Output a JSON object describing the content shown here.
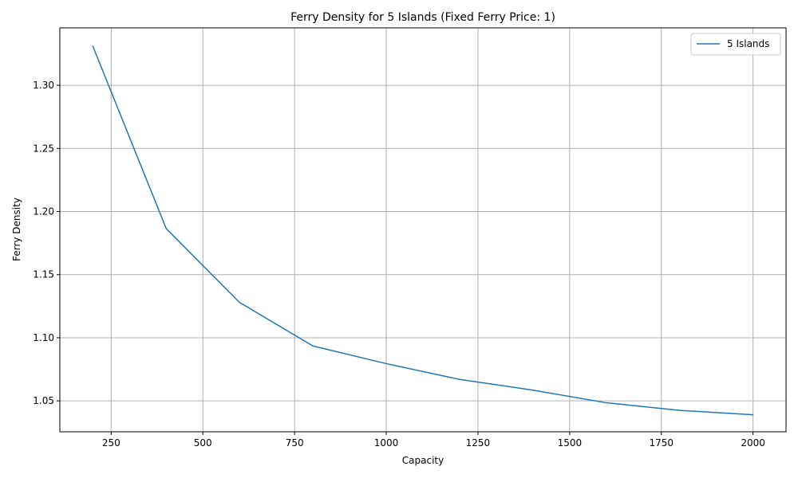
{
  "chart_data": {
    "type": "line",
    "title": "Ferry Density for 5 Islands (Fixed Ferry Price: 1)",
    "xlabel": "Capacity",
    "ylabel": "Ferry Density",
    "xlim": [
      110,
      2090
    ],
    "ylim": [
      1.0255,
      1.3455
    ],
    "xticks": [
      250,
      500,
      750,
      1000,
      1250,
      1500,
      1750,
      2000
    ],
    "yticks": [
      1.05,
      1.1,
      1.15,
      1.2,
      1.25,
      1.3
    ],
    "ytick_labels": [
      "1.05",
      "1.10",
      "1.15",
      "1.20",
      "1.25",
      "1.30"
    ],
    "grid": true,
    "legend": "top-right",
    "colors": {
      "series": "#1f77b4",
      "grid": "#b0b0b0",
      "axis": "#000000"
    },
    "series": [
      {
        "name": "5 Islands",
        "x": [
          200,
          400,
          600,
          800,
          1000,
          1200,
          1400,
          1600,
          1800,
          2000
        ],
        "values": [
          1.331,
          1.1865,
          1.128,
          1.0935,
          1.0795,
          1.067,
          1.0585,
          1.0485,
          1.0425,
          1.039
        ]
      }
    ]
  }
}
